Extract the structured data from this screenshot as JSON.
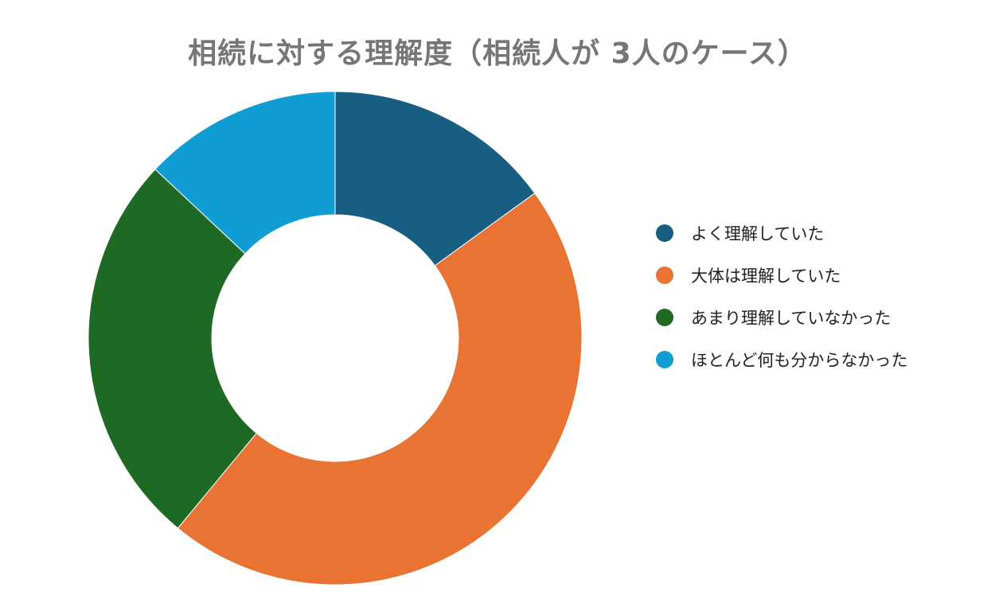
{
  "chart_data": {
    "type": "pie",
    "title": "相続に対する理解度（相続人が 3人のケース）",
    "donut": true,
    "start_angle": "top, clockwise",
    "legend_position": "right",
    "categories": [
      "よく理解していた",
      "大体は理解していた",
      "あまり理解していなかった",
      "ほとんど何も分からなかった"
    ],
    "values": [
      15,
      46,
      26,
      13
    ],
    "colors": [
      "#175e82",
      "#e87333",
      "#1e6923",
      "#109dd4"
    ]
  }
}
